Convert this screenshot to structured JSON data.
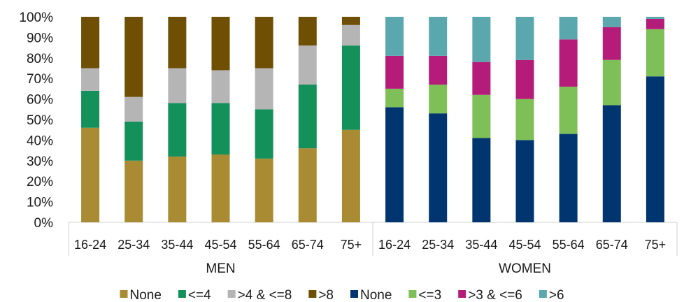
{
  "chart_data": {
    "type": "bar",
    "stacked": true,
    "title": "",
    "ylim": [
      0,
      100
    ],
    "yticks": [
      "0%",
      "10%",
      "20%",
      "30%",
      "40%",
      "50%",
      "60%",
      "70%",
      "80%",
      "90%",
      "100%"
    ],
    "grid": false,
    "legend_position": "bottom",
    "groups": [
      {
        "label": "MEN",
        "categories": [
          "16-24",
          "25-34",
          "35-44",
          "45-54",
          "55-64",
          "65-74",
          "75+"
        ],
        "series": [
          {
            "name": "None",
            "color": "#A98B33",
            "values": [
              46,
              30,
              32,
              33,
              31,
              36,
              45
            ]
          },
          {
            "name": "<=4",
            "color": "#14905A",
            "values": [
              18,
              19,
              26,
              25,
              24,
              31,
              41
            ]
          },
          {
            "name": ">4 & <=8",
            "color": "#B5B5B5",
            "values": [
              11,
              12,
              17,
              16,
              20,
              19,
              10
            ]
          },
          {
            "name": ">8",
            "color": "#6E4F03",
            "values": [
              25,
              39,
              25,
              26,
              25,
              14,
              4
            ]
          }
        ]
      },
      {
        "label": "WOMEN",
        "categories": [
          "16-24",
          "25-34",
          "35-44",
          "45-54",
          "55-64",
          "65-74",
          "75+"
        ],
        "series": [
          {
            "name": "None",
            "color": "#003570",
            "values": [
              56,
              53,
              41,
              40,
              43,
              57,
              71
            ]
          },
          {
            "name": "<=3",
            "color": "#7EBF57",
            "values": [
              9,
              14,
              21,
              20,
              23,
              22,
              23
            ]
          },
          {
            "name": ">3 & <=6",
            "color": "#B51C79",
            "values": [
              16,
              14,
              16,
              19,
              23,
              16,
              5
            ]
          },
          {
            "name": ">6",
            "color": "#5AA8AD",
            "values": [
              19,
              19,
              22,
              21,
              11,
              5,
              1
            ]
          }
        ]
      }
    ]
  }
}
